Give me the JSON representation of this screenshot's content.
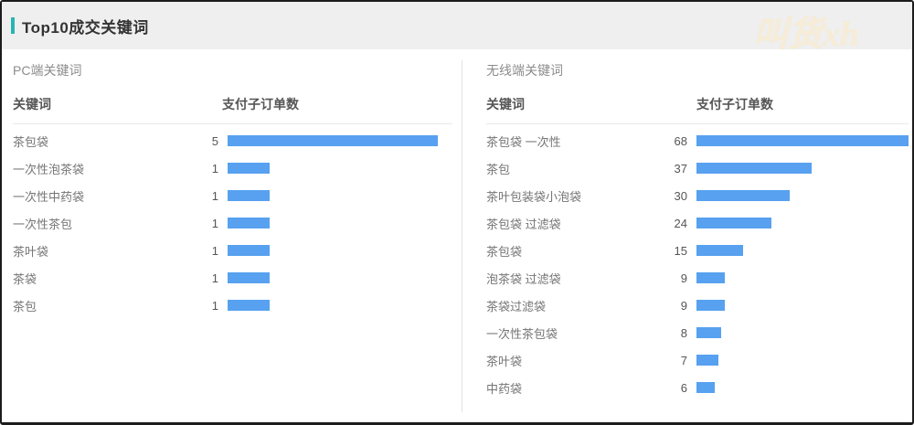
{
  "header": {
    "title": "Top10成交关键词",
    "accent_color": "#29b4b4",
    "watermark": "叫货xh",
    "background": "#efefef"
  },
  "colors": {
    "bar": "#57a1f0",
    "frame_border": "#1c1c1c",
    "divider": "#e2e2e2"
  },
  "chart_data": [
    {
      "type": "bar",
      "orientation": "horizontal",
      "title": "PC端关键词",
      "columns": [
        "关键词",
        "支付子订单数"
      ],
      "categories": [
        "茶包袋",
        "一次性泡茶袋",
        "一次性中药袋",
        "一次性茶包",
        "茶叶袋",
        "茶袋",
        "茶包"
      ],
      "values": [
        5,
        1,
        1,
        1,
        1,
        1,
        1
      ],
      "value_axis_max": 5,
      "grid": false,
      "legend": "none"
    },
    {
      "type": "bar",
      "orientation": "horizontal",
      "title": "无线端关键词",
      "columns": [
        "关键词",
        "支付子订单数"
      ],
      "categories": [
        "茶包袋 一次性",
        "茶包",
        "茶叶包装袋小泡袋",
        "茶包袋 过滤袋",
        "茶包袋",
        "泡茶袋 过滤袋",
        "茶袋过滤袋",
        "一次性茶包袋",
        "茶叶袋",
        "中药袋"
      ],
      "values": [
        68,
        37,
        30,
        24,
        15,
        9,
        9,
        8,
        7,
        6
      ],
      "value_axis_max": 68,
      "grid": false,
      "legend": "none"
    }
  ]
}
